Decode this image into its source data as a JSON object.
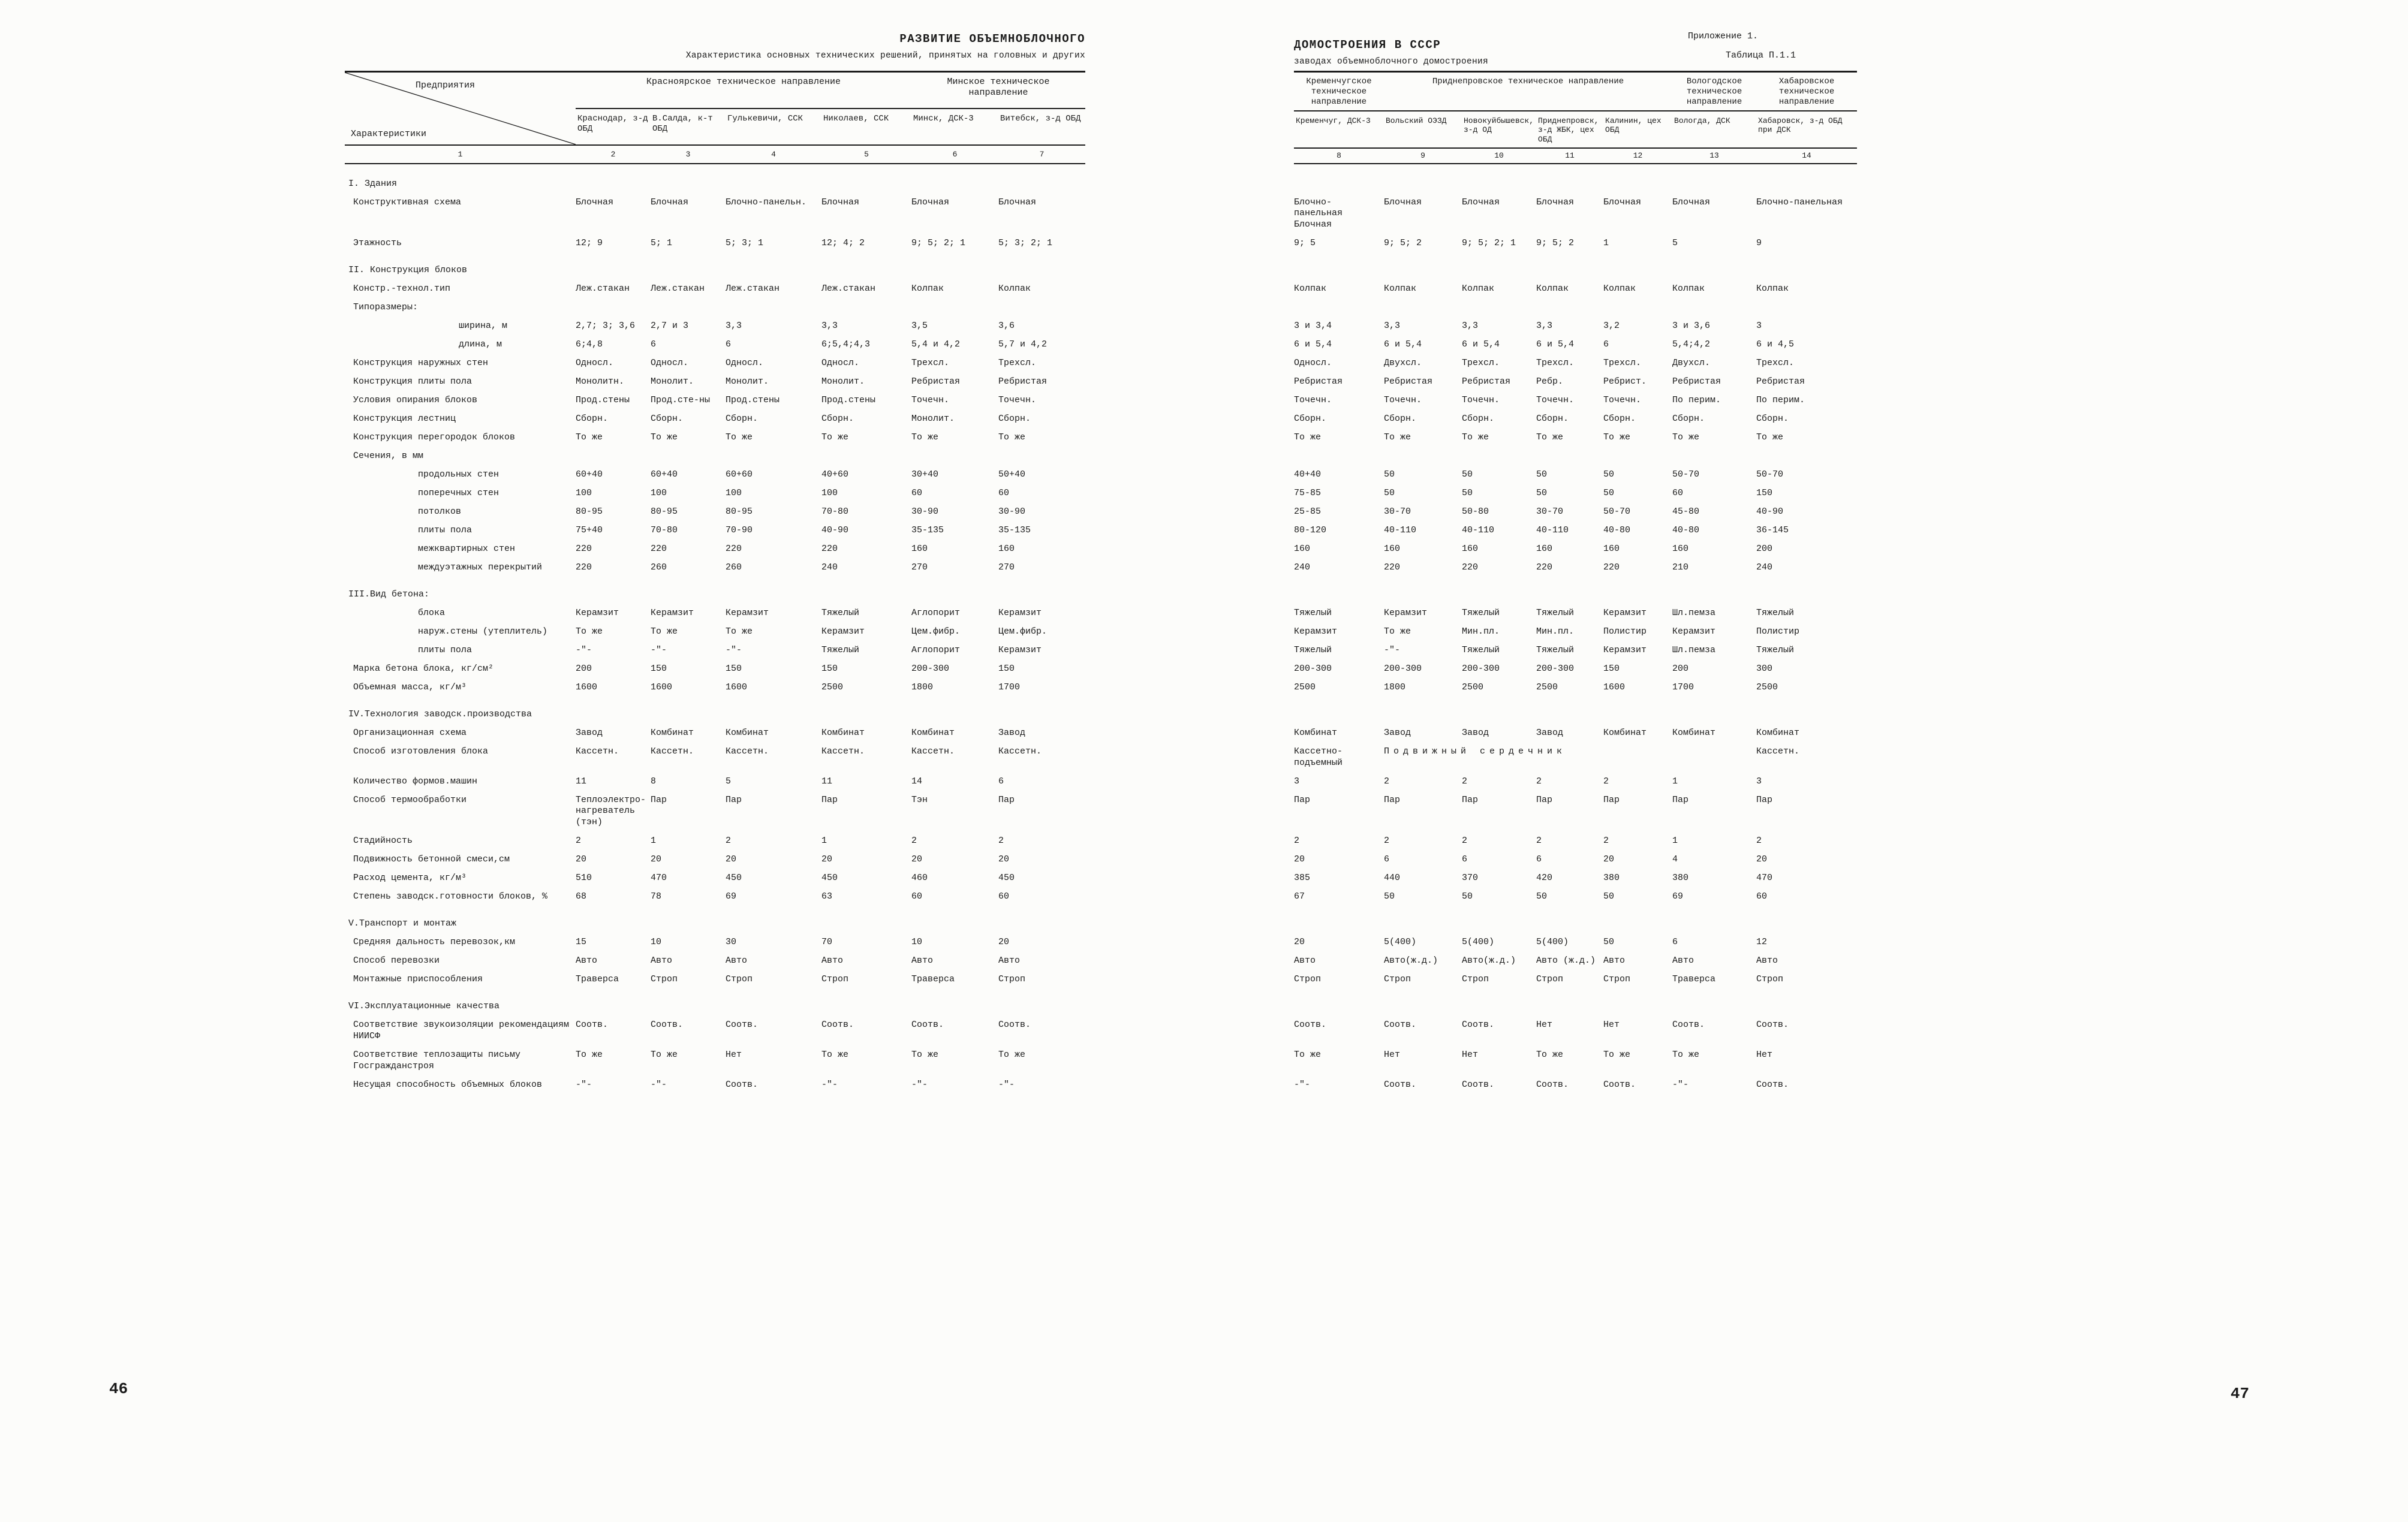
{
  "left_page": {
    "page_number": "46",
    "heading_line1": "РАЗВИТИЕ ОБЪЕМНОБЛОЧНОГО",
    "heading_line2": "Характеристика основных технических решений, принятых на головных и других",
    "table": {
      "corner_top": "Предприятия",
      "corner_bottom": "Характеристики",
      "groups": [
        {
          "label": "Красноярское техническое направление",
          "span": 4
        },
        {
          "label": "Минское техническое направление",
          "span": 2
        }
      ],
      "columns": [
        "Краснодар, з-д ОБД",
        "В.Салда, к-т ОБД",
        "Гулькевичи, ССК",
        "Николаев, ССК",
        "Минск, ДСК-3",
        "Витебск, з-д ОБД"
      ],
      "numbers": [
        "1",
        "2",
        "3",
        "4",
        "5",
        "6",
        "7"
      ]
    }
  },
  "right_page": {
    "page_number": "47",
    "appendix": "Приложение 1.",
    "table_no": "Таблица П.1.1",
    "heading_line1": "ДОМОСТРОЕНИЯ В СССР",
    "heading_line2": "заводах объемноблочного домостроения",
    "table": {
      "groups": [
        {
          "label": "Кременчугское техническое направление",
          "span": 1
        },
        {
          "label": "Приднепровское техническое направление",
          "span": 4
        },
        {
          "label": "Вологодское техническое направление",
          "span": 1
        },
        {
          "label": "Хабаровское техническое направление",
          "span": 1
        }
      ],
      "columns": [
        "Кременчуг, ДСК-3",
        "Вольский ОЭЗД",
        "Новокуйбышевск, з-д ОД",
        "Приднепровск, з-д ЖБК, цех ОБД",
        "Калинин, цех ОБД",
        "Вологда, ДСК",
        "Хабаровск, з-д ОБД при ДСК"
      ],
      "numbers": [
        "8",
        "9",
        "10",
        "11",
        "12",
        "13",
        "14"
      ]
    }
  },
  "rows": [
    {
      "type": "section",
      "indent": 0,
      "label": "I. Здания"
    },
    {
      "indent": 1,
      "label": "Конструктивная схема",
      "left": [
        "Блочная",
        "Блочная",
        "Блочно-панельн.",
        "Блочная",
        "Блочная",
        "Блочная"
      ],
      "right": [
        "Блочно-панельная Блочная",
        "Блочная",
        "Блочная",
        "Блочная",
        "Блочная",
        "Блочная",
        "Блочно-панельная"
      ]
    },
    {
      "indent": 1,
      "label": "Этажность",
      "left": [
        "12; 9",
        "5; 1",
        "5; 3; 1",
        "12; 4; 2",
        "9; 5; 2; 1",
        "5; 3; 2; 1"
      ],
      "right": [
        "9; 5",
        "9; 5; 2",
        "9; 5; 2; 1",
        "9; 5; 2",
        "1",
        "5",
        "9"
      ]
    },
    {
      "type": "section",
      "indent": 0,
      "label": "II. Конструкция блоков"
    },
    {
      "indent": 1,
      "label": "Констр.-технол.тип",
      "left": [
        "Леж.стакан",
        "Леж.стакан",
        "Леж.стакан",
        "Леж.стакан",
        "Колпак",
        "Колпак"
      ],
      "right": [
        "Колпак",
        "Колпак",
        "Колпак",
        "Колпак",
        "Колпак",
        "Колпак",
        "Колпак"
      ]
    },
    {
      "type": "sub",
      "indent": 1,
      "label": "Типоразмеры:"
    },
    {
      "indent": 3,
      "label": "ширина, м",
      "left": [
        "2,7; 3; 3,6",
        "2,7 и 3",
        "3,3",
        "3,3",
        "3,5",
        "3,6"
      ],
      "right": [
        "3 и 3,4",
        "3,3",
        "3,3",
        "3,3",
        "3,2",
        "3 и 3,6",
        "3"
      ]
    },
    {
      "indent": 3,
      "label": "длина, м",
      "left": [
        "6;4,8",
        "6",
        "6",
        "6;5,4;4,3",
        "5,4 и 4,2",
        "5,7 и 4,2"
      ],
      "right": [
        "6 и 5,4",
        "6 и 5,4",
        "6 и 5,4",
        "6 и 5,4",
        "6",
        "5,4;4,2",
        "6 и 4,5"
      ]
    },
    {
      "indent": 1,
      "label": "Конструкция наружных стен",
      "left": [
        "Односл.",
        "Односл.",
        "Односл.",
        "Односл.",
        "Трехсл.",
        "Трехсл."
      ],
      "right": [
        "Односл.",
        "Двухсл.",
        "Трехсл.",
        "Трехсл.",
        "Трехсл.",
        "Двухсл.",
        "Трехсл."
      ]
    },
    {
      "indent": 1,
      "label": "Конструкция плиты пола",
      "left": [
        "Монолитн.",
        "Монолит.",
        "Монолит.",
        "Монолит.",
        "Ребристая",
        "Ребристая"
      ],
      "right": [
        "Ребристая",
        "Ребристая",
        "Ребристая",
        "Ребр.",
        "Ребрист.",
        "Ребристая",
        "Ребристая"
      ]
    },
    {
      "indent": 1,
      "label": "Условия опирания блоков",
      "left": [
        "Прод.стены",
        "Прод.сте-ны",
        "Прод.стены",
        "Прод.стены",
        "Точечн.",
        "Точечн."
      ],
      "right": [
        "Точечн.",
        "Точечн.",
        "Точечн.",
        "Точечн.",
        "Точечн.",
        "По перим.",
        "По перим."
      ]
    },
    {
      "indent": 1,
      "label": "Конструкция лестниц",
      "left": [
        "Сборн.",
        "Сборн.",
        "Сборн.",
        "Сборн.",
        "Монолит.",
        "Сборн."
      ],
      "right": [
        "Сборн.",
        "Сборн.",
        "Сборн.",
        "Сборн.",
        "Сборн.",
        "Сборн.",
        "Сборн."
      ]
    },
    {
      "indent": 1,
      "label": "Конструкция перегородок блоков",
      "left": [
        "То же",
        "То же",
        "То же",
        "То же",
        "То же",
        "То же"
      ],
      "right": [
        "То же",
        "То же",
        "То же",
        "То же",
        "То же",
        "То же",
        "То же"
      ]
    },
    {
      "type": "sub",
      "indent": 1,
      "label": "Сечения, в мм"
    },
    {
      "indent": 2,
      "label": "продольных стен",
      "left": [
        "60+40",
        "60+40",
        "60+60",
        "40+60",
        "30+40",
        "50+40"
      ],
      "right": [
        "40+40",
        "50",
        "50",
        "50",
        "50",
        "50-70",
        "50-70"
      ]
    },
    {
      "indent": 2,
      "label": "поперечных стен",
      "left": [
        "100",
        "100",
        "100",
        "100",
        "60",
        "60"
      ],
      "right": [
        "75-85",
        "50",
        "50",
        "50",
        "50",
        "60",
        "150"
      ]
    },
    {
      "indent": 2,
      "label": "потолков",
      "left": [
        "80-95",
        "80-95",
        "80-95",
        "70-80",
        "30-90",
        "30-90"
      ],
      "right": [
        "25-85",
        "30-70",
        "50-80",
        "30-70",
        "50-70",
        "45-80",
        "40-90"
      ]
    },
    {
      "indent": 2,
      "label": "плиты пола",
      "left": [
        "75+40",
        "70-80",
        "70-90",
        "40-90",
        "35-135",
        "35-135"
      ],
      "right": [
        "80-120",
        "40-110",
        "40-110",
        "40-110",
        "40-80",
        "40-80",
        "36-145"
      ]
    },
    {
      "indent": 2,
      "label": "межквартирных стен",
      "left": [
        "220",
        "220",
        "220",
        "220",
        "160",
        "160"
      ],
      "right": [
        "160",
        "160",
        "160",
        "160",
        "160",
        "160",
        "200"
      ]
    },
    {
      "indent": 2,
      "label": "междуэтажных перекрытий",
      "left": [
        "220",
        "260",
        "260",
        "240",
        "270",
        "270"
      ],
      "right": [
        "240",
        "220",
        "220",
        "220",
        "220",
        "210",
        "240"
      ]
    },
    {
      "type": "section",
      "indent": 0,
      "label": "III.Вид бетона:"
    },
    {
      "indent": 2,
      "label": "блока",
      "left": [
        "Керамзит",
        "Керамзит",
        "Керамзит",
        "Тяжелый",
        "Аглопорит",
        "Керамзит"
      ],
      "right": [
        "Тяжелый",
        "Керамзит",
        "Тяжелый",
        "Тяжелый",
        "Керамзит",
        "Шл.пемза",
        "Тяжелый"
      ]
    },
    {
      "indent": 2,
      "label": "наруж.стены (утеплитель)",
      "left": [
        "То же",
        "То же",
        "То же",
        "Керамзит",
        "Цем.фибр.",
        "Цем.фибр."
      ],
      "right": [
        "Керамзит",
        "То же",
        "Мин.пл.",
        "Мин.пл.",
        "Полистир",
        "Керамзит",
        "Полистир"
      ]
    },
    {
      "indent": 2,
      "label": "плиты пола",
      "left": [
        "-\"-",
        "-\"-",
        "-\"-",
        "Тяжелый",
        "Аглопорит",
        "Керамзит"
      ],
      "right": [
        "Тяжелый",
        "-\"-",
        "Тяжелый",
        "Тяжелый",
        "Керамзит",
        "Шл.пемза",
        "Тяжелый"
      ]
    },
    {
      "indent": 1,
      "label": "Марка бетона блока, кг/см²",
      "left": [
        "200",
        "150",
        "150",
        "150",
        "200-300",
        "150"
      ],
      "right": [
        "200-300",
        "200-300",
        "200-300",
        "200-300",
        "150",
        "200",
        "300"
      ]
    },
    {
      "indent": 1,
      "label": "Объемная масса, кг/м³",
      "left": [
        "1600",
        "1600",
        "1600",
        "2500",
        "1800",
        "1700"
      ],
      "right": [
        "2500",
        "1800",
        "2500",
        "2500",
        "1600",
        "1700",
        "2500"
      ]
    },
    {
      "type": "section",
      "indent": 0,
      "label": "IV.Технология заводск.производства"
    },
    {
      "indent": 1,
      "label": "Организационная схема",
      "left": [
        "Завод",
        "Комбинат",
        "Комбинат",
        "Комбинат",
        "Комбинат",
        "Завод"
      ],
      "right": [
        "Комбинат",
        "Завод",
        "Завод",
        "Завод",
        "Комбинат",
        "Комбинат",
        "Комбинат"
      ]
    },
    {
      "indent": 1,
      "label": "Способ изготовления блока",
      "left": [
        "Кассетн.",
        "Кассетн.",
        "Кассетн.",
        "Кассетн.",
        "Кассетн.",
        "Кассетн."
      ],
      "right": [
        "Кассетно-подъемный",
        {
          "text": "Подвижный сердечник",
          "span": 5,
          "spread": true
        },
        "Кассетн."
      ]
    },
    {
      "indent": 1,
      "label": "Количество формов.машин",
      "left": [
        "11",
        "8",
        "5",
        "11",
        "14",
        "6"
      ],
      "right": [
        "3",
        "2",
        "2",
        "2",
        "2",
        "1",
        "3"
      ]
    },
    {
      "indent": 1,
      "label": "Способ термообработки",
      "left": [
        "Теплоэлектро-нагреватель (тэн)",
        "Пар",
        "Пар",
        "Пар",
        "Тэн",
        "Пар"
      ],
      "right": [
        "Пар",
        "Пар",
        "Пар",
        "Пар",
        "Пар",
        "Пар",
        "Пар"
      ]
    },
    {
      "indent": 1,
      "label": "Стадийность",
      "left": [
        "2",
        "1",
        "2",
        "1",
        "2",
        "2"
      ],
      "right": [
        "2",
        "2",
        "2",
        "2",
        "2",
        "1",
        "2"
      ]
    },
    {
      "indent": 1,
      "label": "Подвижность бетонной смеси,см",
      "left": [
        "20",
        "20",
        "20",
        "20",
        "20",
        "20"
      ],
      "right": [
        "20",
        "6",
        "6",
        "6",
        "20",
        "4",
        "20"
      ]
    },
    {
      "indent": 1,
      "label": "Расход цемента, кг/м³",
      "left": [
        "510",
        "470",
        "450",
        "450",
        "460",
        "450"
      ],
      "right": [
        "385",
        "440",
        "370",
        "420",
        "380",
        "380",
        "470"
      ]
    },
    {
      "indent": 1,
      "label": "Степень заводск.готовности блоков, %",
      "left": [
        "68",
        "78",
        "69",
        "63",
        "60",
        "60"
      ],
      "right": [
        "67",
        "50",
        "50",
        "50",
        "50",
        "69",
        "60"
      ]
    },
    {
      "type": "section",
      "indent": 0,
      "label": "V.Транспорт и монтаж"
    },
    {
      "indent": 1,
      "label": "Средняя дальность перевозок,км",
      "left": [
        "15",
        "10",
        "30",
        "70",
        "10",
        "20"
      ],
      "right": [
        "20",
        "5(400)",
        "5(400)",
        "5(400)",
        "50",
        "6",
        "12"
      ]
    },
    {
      "indent": 1,
      "label": "Способ перевозки",
      "left": [
        "Авто",
        "Авто",
        "Авто",
        "Авто",
        "Авто",
        "Авто"
      ],
      "right": [
        "Авто",
        "Авто(ж.д.)",
        "Авто(ж.д.)",
        "Авто (ж.д.)",
        "Авто",
        "Авто",
        "Авто"
      ]
    },
    {
      "indent": 1,
      "label": "Монтажные приспособления",
      "left": [
        "Траверса",
        "Строп",
        "Строп",
        "Строп",
        "Траверса",
        "Строп"
      ],
      "right": [
        "Строп",
        "Строп",
        "Строп",
        "Строп",
        "Строп",
        "Траверса",
        "Строп"
      ]
    },
    {
      "type": "section",
      "indent": 0,
      "label": "VI.Эксплуатационные качества"
    },
    {
      "indent": 1,
      "label": "Соответствие звукоизоляции рекомендациям НИИСФ",
      "left": [
        "Соотв.",
        "Соотв.",
        "Соотв.",
        "Соотв.",
        "Соотв.",
        "Соотв."
      ],
      "right": [
        "Соотв.",
        "Соотв.",
        "Соотв.",
        "Нет",
        "Нет",
        "Соотв.",
        "Соотв."
      ]
    },
    {
      "indent": 1,
      "label": "Соответствие теплозащиты письму Госгражданстроя",
      "left": [
        "То же",
        "То же",
        "Нет",
        "То же",
        "То же",
        "То же"
      ],
      "right": [
        "То же",
        "Нет",
        "Нет",
        "То же",
        "То же",
        "То же",
        "Нет"
      ]
    },
    {
      "indent": 1,
      "label": "Несущая способность объемных блоков",
      "left": [
        "-\"-",
        "-\"-",
        "Соотв.",
        "-\"-",
        "-\"-",
        "-\"-"
      ],
      "right": [
        "-\"-",
        "Соотв.",
        "Соотв.",
        "Соотв.",
        "Соотв.",
        "-\"-",
        "Соотв."
      ]
    }
  ]
}
